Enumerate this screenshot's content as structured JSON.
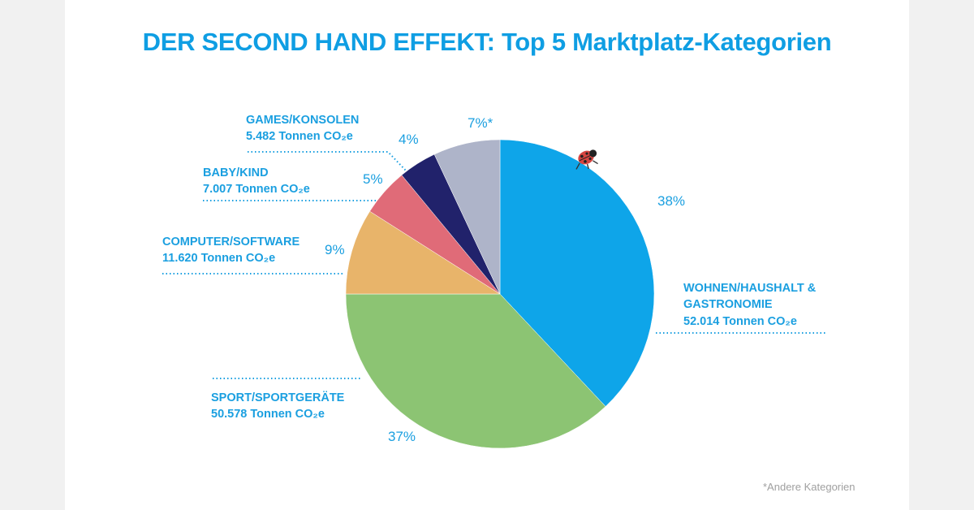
{
  "chart_data": {
    "type": "pie",
    "title": "DER SECOND HAND EFFEKT: Top 5 Marktplatz-Kategorien",
    "slices": [
      {
        "name": "WOHNEN/HAUSHALT & GASTRONOMIE",
        "value": 38,
        "label": "38%",
        "detail": "52.014 Tonnen CO₂e",
        "color": "#0ea5e9"
      },
      {
        "name": "SPORT/SPORTGERÄTE",
        "value": 37,
        "label": "37%",
        "detail": "50.578 Tonnen CO₂e",
        "color": "#8cc473"
      },
      {
        "name": "COMPUTER/SOFTWARE",
        "value": 9,
        "label": "9%",
        "detail": "11.620 Tonnen CO₂e",
        "color": "#e8b46a"
      },
      {
        "name": "BABY/KIND",
        "value": 5,
        "label": "5%",
        "detail": "7.007 Tonnen CO₂e",
        "color": "#e06b78"
      },
      {
        "name": "GAMES/KONSOLEN",
        "value": 4,
        "label": "4%",
        "detail": "5.482 Tonnen CO₂e",
        "color": "#21226b"
      },
      {
        "name": "",
        "value": 7,
        "label": "7%*",
        "detail": "",
        "color": "#aeb4c9"
      }
    ],
    "footnote": "*Andere Kategorien"
  },
  "decoration": {
    "icon": "ladybug-icon",
    "color": "#d64541"
  }
}
